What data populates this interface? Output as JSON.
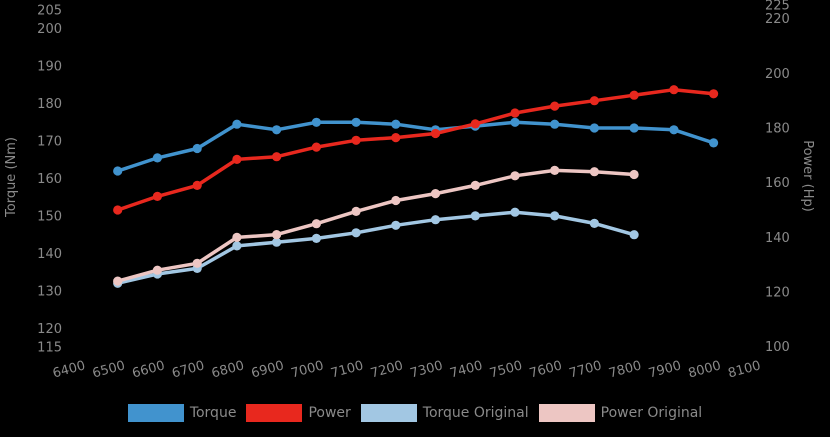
{
  "background_color": "#000000",
  "text_color": "#8a8a8a",
  "chart_data": {
    "type": "line",
    "title": "",
    "grid": false,
    "legend_position": "bottom",
    "x_ticks": [
      6400,
      6500,
      6600,
      6700,
      6800,
      6900,
      7000,
      7100,
      7200,
      7300,
      7400,
      7500,
      7600,
      7700,
      7800,
      7900,
      8000,
      8100
    ],
    "left_axis": {
      "label": "Torque (Nm)",
      "ticks": [
        205,
        200,
        190,
        180,
        170,
        160,
        150,
        140,
        130,
        120,
        115
      ],
      "range": [
        115,
        205
      ]
    },
    "right_axis": {
      "label": "Power (Hp)",
      "ticks": [
        225,
        220,
        200,
        180,
        160,
        140,
        120,
        100
      ],
      "range": [
        100,
        225
      ]
    },
    "series": [
      {
        "name": "Torque",
        "axis": "left",
        "color": "#4193ce",
        "x": [
          6500,
          6600,
          6700,
          6800,
          6900,
          7000,
          7100,
          7200,
          7300,
          7400,
          7500,
          7600,
          7700,
          7800,
          7900,
          8000
        ],
        "values": [
          162,
          165.5,
          168,
          174.5,
          173,
          175,
          175,
          174.5,
          173,
          174,
          175,
          174.5,
          173.5,
          173.5,
          173,
          169.5
        ]
      },
      {
        "name": "Power",
        "axis": "right",
        "color": "#e8281e",
        "x": [
          6500,
          6600,
          6700,
          6800,
          6900,
          7000,
          7100,
          7200,
          7300,
          7400,
          7500,
          7600,
          7700,
          7800,
          7900,
          8000
        ],
        "values": [
          150,
          155,
          159,
          168.5,
          169.5,
          173,
          175.5,
          176.5,
          178,
          181.5,
          185.5,
          188,
          190,
          192,
          194,
          192.5
        ]
      },
      {
        "name": "Torque Original",
        "axis": "left",
        "color": "#a2c7e3",
        "x": [
          6500,
          6600,
          6700,
          6800,
          6900,
          7000,
          7100,
          7200,
          7300,
          7400,
          7500,
          7600,
          7700,
          7800
        ],
        "values": [
          132,
          134.5,
          136,
          142,
          143,
          144,
          145.5,
          147.5,
          149,
          150,
          151,
          150,
          148,
          145
        ]
      },
      {
        "name": "Power Original",
        "axis": "right",
        "color": "#edc6c3",
        "x": [
          6500,
          6600,
          6700,
          6800,
          6900,
          7000,
          7100,
          7200,
          7300,
          7400,
          7500,
          7600,
          7700,
          7800
        ],
        "values": [
          124,
          128,
          130.5,
          140,
          141,
          145,
          149.5,
          153.5,
          156,
          159,
          162.5,
          164.5,
          164,
          163
        ]
      }
    ]
  }
}
